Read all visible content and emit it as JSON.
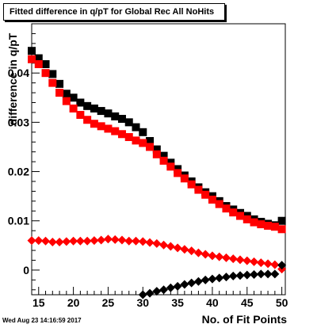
{
  "title": "Fitted difference in q/pT for Global Rec All NoHits",
  "timestamp": "Wed Aug 23 14:16:59 2017",
  "colors": {
    "black": "#000000",
    "red": "#ff0000",
    "frame": "#000000"
  },
  "chart_data": {
    "type": "scatter",
    "title": "Fitted difference in q/pT for Global Rec All NoHits",
    "xlabel": "No. of Fit Points",
    "ylabel": "difference in q/pT",
    "xlim": [
      14,
      50.5
    ],
    "ylim": [
      -0.005,
      0.05
    ],
    "x_ticks": [
      15,
      20,
      25,
      30,
      35,
      40,
      45,
      50
    ],
    "x_tick_labels": [
      "15",
      "20",
      "25",
      "30",
      "35",
      "40",
      "45",
      "50"
    ],
    "y_ticks": [
      0,
      0.01,
      0.02,
      0.03,
      0.04
    ],
    "y_tick_labels": [
      "0",
      "0.01",
      "0.02",
      "0.03",
      "0.04"
    ],
    "grid": false,
    "legend": "none",
    "series": [
      {
        "color": "#000000",
        "marker": "square",
        "x": [
          14,
          15,
          16,
          17,
          18,
          19,
          20,
          21,
          22,
          23,
          24,
          25,
          26,
          27,
          28,
          29,
          30,
          31,
          32,
          33,
          34,
          35,
          36,
          37,
          38,
          39,
          40,
          41,
          42,
          43,
          44,
          45,
          46,
          47,
          48,
          49,
          50
        ],
        "y": [
          0.0445,
          0.043,
          0.0418,
          0.0398,
          0.0378,
          0.0358,
          0.035,
          0.034,
          0.0333,
          0.0328,
          0.0323,
          0.0318,
          0.0312,
          0.0307,
          0.03,
          0.029,
          0.028,
          0.0262,
          0.0245,
          0.0232,
          0.0218,
          0.0205,
          0.0192,
          0.018,
          0.0168,
          0.0158,
          0.015,
          0.014,
          0.013,
          0.0123,
          0.0116,
          0.011,
          0.0103,
          0.0098,
          0.0094,
          0.0091,
          0.01
        ]
      },
      {
        "color": "#ff0000",
        "marker": "square",
        "x": [
          14,
          15,
          16,
          17,
          18,
          19,
          20,
          21,
          22,
          23,
          24,
          25,
          26,
          27,
          28,
          29,
          30,
          31,
          32,
          33,
          34,
          35,
          36,
          37,
          38,
          39,
          40,
          41,
          42,
          43,
          44,
          45,
          46,
          47,
          48,
          49,
          50
        ],
        "y": [
          0.0428,
          0.0418,
          0.04,
          0.038,
          0.036,
          0.0343,
          0.0328,
          0.0315,
          0.0305,
          0.0297,
          0.0292,
          0.0287,
          0.0282,
          0.0276,
          0.027,
          0.0263,
          0.0258,
          0.025,
          0.0235,
          0.0222,
          0.021,
          0.0197,
          0.0186,
          0.0174,
          0.0163,
          0.0153,
          0.0143,
          0.0134,
          0.0125,
          0.0117,
          0.011,
          0.0103,
          0.0097,
          0.0093,
          0.009,
          0.0088,
          0.0083
        ]
      },
      {
        "color": "#ff0000",
        "marker": "diamond",
        "x": [
          14,
          15,
          16,
          17,
          18,
          19,
          20,
          21,
          22,
          23,
          24,
          25,
          26,
          27,
          28,
          29,
          30,
          31,
          32,
          33,
          34,
          35,
          36,
          37,
          38,
          39,
          40,
          41,
          42,
          43,
          44,
          45,
          46,
          47,
          48,
          49,
          50
        ],
        "y": [
          0.006,
          0.006,
          0.0059,
          0.0057,
          0.0057,
          0.0058,
          0.0059,
          0.0059,
          0.0059,
          0.006,
          0.0061,
          0.0063,
          0.0062,
          0.0061,
          0.0059,
          0.0059,
          0.0058,
          0.0056,
          0.0054,
          0.0051,
          0.0048,
          0.0045,
          0.0042,
          0.0039,
          0.0035,
          0.0032,
          0.0029,
          0.0027,
          0.0025,
          0.0023,
          0.0021,
          0.0019,
          0.0017,
          0.0015,
          0.0013,
          0.0011,
          0.0002
        ]
      },
      {
        "color": "#000000",
        "marker": "diamond",
        "x": [
          30,
          31,
          32,
          33,
          34,
          35,
          36,
          37,
          38,
          39,
          40,
          41,
          42,
          43,
          44,
          45,
          46,
          47,
          48,
          49,
          50
        ],
        "y": [
          -0.005,
          -0.0047,
          -0.0043,
          -0.004,
          -0.0036,
          -0.0033,
          -0.0029,
          -0.0026,
          -0.0023,
          -0.002,
          -0.0018,
          -0.0016,
          -0.0014,
          -0.0012,
          -0.0011,
          -0.001,
          -0.0009,
          -0.0008,
          -0.0008,
          -0.0008,
          0.001
        ]
      }
    ]
  }
}
